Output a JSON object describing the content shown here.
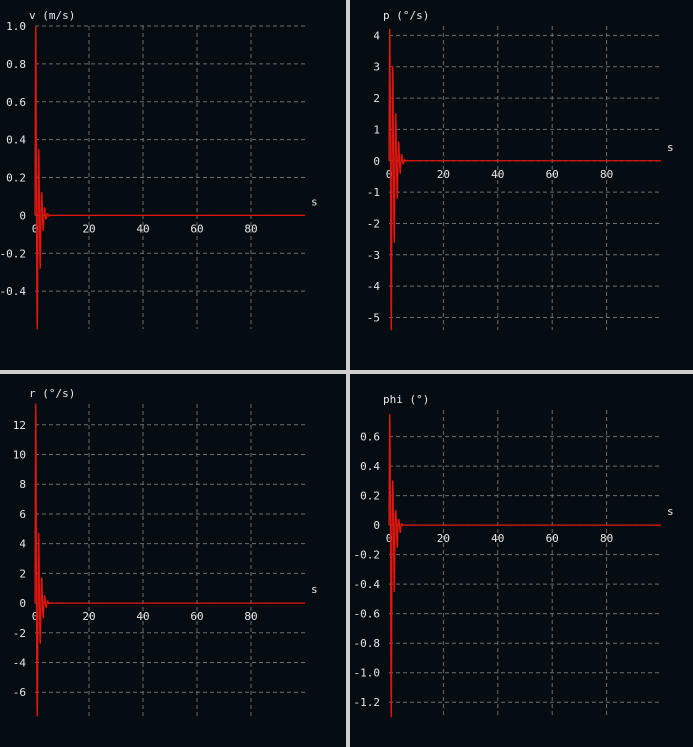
{
  "colors": {
    "background": "#050c12",
    "series": "#e0160f",
    "grid": "#6e6e6e",
    "text": "#e8e8e8",
    "divider": "#cfcfcf"
  },
  "chart_data": [
    {
      "type": "line",
      "title": "v (m/s)",
      "xlabel": "s",
      "ylabel": "v (m/s)",
      "xlim": [
        0,
        100
      ],
      "ylim": [
        -0.6,
        1.0
      ],
      "xticks": [
        "0",
        "20",
        "40",
        "60",
        "80"
      ],
      "yticks": [
        "1.0",
        "0.8",
        "0.6",
        "0.4",
        "0.2",
        "0",
        "-0.2",
        "-0.4"
      ],
      "grid": true,
      "series": [
        {
          "peaks": [
            1.0,
            -0.6,
            0.35,
            -0.28,
            0.12,
            -0.08,
            0.04,
            -0.02,
            0.01
          ],
          "period": 1.1
        }
      ]
    },
    {
      "type": "line",
      "title": "p (°/s)",
      "xlabel": "s",
      "ylabel": "p (°/s)",
      "xlim": [
        0,
        100
      ],
      "ylim": [
        -5.4,
        4.3
      ],
      "xticks": [
        "0",
        "20",
        "40",
        "60",
        "80"
      ],
      "yticks": [
        "4",
        "3",
        "2",
        "1",
        "0",
        "-1",
        "-2",
        "-3",
        "-4",
        "-5"
      ],
      "grid": true,
      "series": [
        {
          "peaks": [
            4.2,
            -5.4,
            3.0,
            -2.6,
            1.5,
            -1.2,
            0.6,
            -0.4,
            0.2,
            -0.1
          ],
          "period": 1.1
        }
      ]
    },
    {
      "type": "line",
      "title": "r (°/s)",
      "xlabel": "s",
      "ylabel": "r (°/s)",
      "xlim": [
        0,
        100
      ],
      "ylim": [
        -7.6,
        13.4
      ],
      "xticks": [
        "0",
        "20",
        "40",
        "60",
        "80"
      ],
      "yticks": [
        "12",
        "10",
        "8",
        "6",
        "4",
        "2",
        "0",
        "-2",
        "-4",
        "-6"
      ],
      "grid": true,
      "series": [
        {
          "peaks": [
            13.4,
            -7.6,
            4.7,
            -2.7,
            1.7,
            -1.0,
            0.5,
            -0.3,
            0.15
          ],
          "period": 1.1
        }
      ]
    },
    {
      "type": "line",
      "title": "phi (°)",
      "xlabel": "s",
      "ylabel": "phi (°)",
      "xlim": [
        0,
        100
      ],
      "ylim": [
        -1.3,
        0.78
      ],
      "xticks": [
        "0",
        "20",
        "40",
        "60",
        "80"
      ],
      "yticks": [
        "0.6",
        "0.4",
        "0.2",
        "0",
        "-0.2",
        "-0.4",
        "-0.6",
        "-0.8",
        "-1.0",
        "-1.2"
      ],
      "grid": true,
      "series": [
        {
          "peaks": [
            0.75,
            -1.3,
            0.3,
            -0.45,
            0.1,
            -0.15,
            0.04,
            -0.05,
            0.01
          ],
          "period": 1.1
        }
      ]
    }
  ]
}
